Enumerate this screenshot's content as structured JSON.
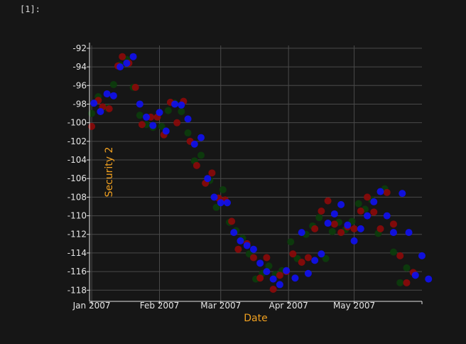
{
  "cell": {
    "prompt": "[1]:"
  },
  "chart_data": {
    "type": "scatter",
    "xlabel": "Date",
    "ylabel": "Security 2",
    "xlim": [
      "2006-12-31",
      "2007-06-01"
    ],
    "ylim": [
      -119.2,
      -91.7
    ],
    "xticks": [
      {
        "label": "Jan 2007",
        "date": "2007-01-01"
      },
      {
        "label": "Feb 2007",
        "date": "2007-02-01"
      },
      {
        "label": "Mar 2007",
        "date": "2007-03-01"
      },
      {
        "label": "Apr 2007",
        "date": "2007-04-01"
      },
      {
        "label": "May 2007",
        "date": "2007-05-01"
      }
    ],
    "yticks": [
      -92,
      -94,
      -96,
      -98,
      -100,
      -102,
      -104,
      -106,
      -108,
      -110,
      -112,
      -114,
      -116,
      -118
    ],
    "grid": true,
    "series_colors": [
      "#0c3d0c",
      "#8a0a0a",
      "#1010ee"
    ],
    "series": [
      {
        "values": [
          [
            "2007-01-01",
            -99.0
          ],
          [
            "2007-01-04",
            -97.2
          ],
          [
            "2007-01-08",
            -98.4
          ],
          [
            "2007-01-11",
            -95.9
          ],
          [
            "2007-01-14",
            -93.8
          ],
          [
            "2007-01-17",
            -93.2
          ],
          [
            "2007-01-20",
            -96.2
          ],
          [
            "2007-01-23",
            -99.2
          ],
          [
            "2007-01-26",
            -100.2
          ],
          [
            "2007-01-29",
            -100.5
          ],
          [
            "2007-02-02",
            -100.4
          ],
          [
            "2007-02-05",
            -98.7
          ],
          [
            "2007-02-08",
            -97.9
          ],
          [
            "2007-02-11",
            -98.8
          ],
          [
            "2007-02-14",
            -101.1
          ],
          [
            "2007-02-17",
            -104.1
          ],
          [
            "2007-02-20",
            -103.5
          ],
          [
            "2007-02-24",
            -106.2
          ],
          [
            "2007-02-27",
            -109.1
          ],
          [
            "2007-03-02",
            -107.2
          ],
          [
            "2007-03-05",
            -110.7
          ],
          [
            "2007-03-08",
            -111.6
          ],
          [
            "2007-03-11",
            -112.4
          ],
          [
            "2007-03-14",
            -114.1
          ],
          [
            "2007-03-17",
            -116.8
          ],
          [
            "2007-03-20",
            -116.2
          ],
          [
            "2007-03-23",
            -115.4
          ],
          [
            "2007-03-26",
            -116.3
          ],
          [
            "2007-03-29",
            -115.9
          ],
          [
            "2007-04-02",
            -112.8
          ],
          [
            "2007-04-05",
            -114.6
          ],
          [
            "2007-04-09",
            -112.0
          ],
          [
            "2007-04-12",
            -111.1
          ],
          [
            "2007-04-15",
            -110.2
          ],
          [
            "2007-04-18",
            -114.6
          ],
          [
            "2007-04-21",
            -111.7
          ],
          [
            "2007-04-24",
            -110.7
          ],
          [
            "2007-04-27",
            -111.5
          ],
          [
            "2007-04-30",
            -110.6
          ],
          [
            "2007-05-03",
            -108.7
          ],
          [
            "2007-05-06",
            -109.3
          ],
          [
            "2007-05-09",
            -108.3
          ],
          [
            "2007-05-12",
            -111.9
          ],
          [
            "2007-05-15",
            -107.1
          ],
          [
            "2007-05-19",
            -113.9
          ],
          [
            "2007-05-22",
            -117.2
          ],
          [
            "2007-05-25",
            -115.6
          ]
        ]
      },
      {
        "values": [
          [
            "2007-01-01",
            -100.4
          ],
          [
            "2007-01-04",
            -97.6
          ],
          [
            "2007-01-06",
            -98.3
          ],
          [
            "2007-01-09",
            -98.5
          ],
          [
            "2007-01-13",
            -93.9
          ],
          [
            "2007-01-15",
            -92.9
          ],
          [
            "2007-01-18",
            -93.6
          ],
          [
            "2007-01-21",
            -96.2
          ],
          [
            "2007-01-24",
            -100.2
          ],
          [
            "2007-01-28",
            -99.4
          ],
          [
            "2007-01-31",
            -99.4
          ],
          [
            "2007-02-03",
            -101.3
          ],
          [
            "2007-02-06",
            -97.8
          ],
          [
            "2007-02-09",
            -100.0
          ],
          [
            "2007-02-12",
            -97.7
          ],
          [
            "2007-02-15",
            -102.0
          ],
          [
            "2007-02-18",
            -104.6
          ],
          [
            "2007-02-22",
            -106.5
          ],
          [
            "2007-02-25",
            -105.4
          ],
          [
            "2007-02-28",
            -108.1
          ],
          [
            "2007-03-03",
            -108.3
          ],
          [
            "2007-03-06",
            -110.6
          ],
          [
            "2007-03-09",
            -113.6
          ],
          [
            "2007-03-13",
            -113.0
          ],
          [
            "2007-03-16",
            -114.5
          ],
          [
            "2007-03-19",
            -116.7
          ],
          [
            "2007-03-22",
            -114.5
          ],
          [
            "2007-03-25",
            -117.9
          ],
          [
            "2007-03-28",
            -116.4
          ],
          [
            "2007-03-31",
            -116.0
          ],
          [
            "2007-04-03",
            -114.1
          ],
          [
            "2007-04-07",
            -115.0
          ],
          [
            "2007-04-10",
            -114.5
          ],
          [
            "2007-04-13",
            -111.4
          ],
          [
            "2007-04-16",
            -109.5
          ],
          [
            "2007-04-19",
            -108.4
          ],
          [
            "2007-04-22",
            -110.9
          ],
          [
            "2007-04-25",
            -111.8
          ],
          [
            "2007-04-28",
            -111.2
          ],
          [
            "2007-05-01",
            -111.4
          ],
          [
            "2007-05-04",
            -109.5
          ],
          [
            "2007-05-07",
            -108.0
          ],
          [
            "2007-05-10",
            -109.6
          ],
          [
            "2007-05-13",
            -111.4
          ],
          [
            "2007-05-16",
            -107.5
          ],
          [
            "2007-05-19",
            -110.9
          ],
          [
            "2007-05-22",
            -114.3
          ],
          [
            "2007-05-25",
            -117.2
          ],
          [
            "2007-05-28",
            -116.1
          ]
        ]
      },
      {
        "values": [
          [
            "2007-01-02",
            -97.9
          ],
          [
            "2007-01-05",
            -98.8
          ],
          [
            "2007-01-08",
            -96.9
          ],
          [
            "2007-01-11",
            -97.1
          ],
          [
            "2007-01-14",
            -94.0
          ],
          [
            "2007-01-17",
            -93.6
          ],
          [
            "2007-01-20",
            -92.9
          ],
          [
            "2007-01-23",
            -98.0
          ],
          [
            "2007-01-26",
            -99.4
          ],
          [
            "2007-01-29",
            -100.3
          ],
          [
            "2007-02-01",
            -98.9
          ],
          [
            "2007-02-04",
            -100.9
          ],
          [
            "2007-02-08",
            -98.0
          ],
          [
            "2007-02-11",
            -98.1
          ],
          [
            "2007-02-14",
            -99.6
          ],
          [
            "2007-02-17",
            -102.3
          ],
          [
            "2007-02-20",
            -101.6
          ],
          [
            "2007-02-23",
            -106.0
          ],
          [
            "2007-02-26",
            -108.0
          ],
          [
            "2007-03-01",
            -108.6
          ],
          [
            "2007-03-04",
            -108.6
          ],
          [
            "2007-03-07",
            -111.8
          ],
          [
            "2007-03-10",
            -112.7
          ],
          [
            "2007-03-13",
            -113.2
          ],
          [
            "2007-03-16",
            -113.6
          ],
          [
            "2007-03-19",
            -115.1
          ],
          [
            "2007-03-22",
            -116.0
          ],
          [
            "2007-03-25",
            -116.8
          ],
          [
            "2007-03-28",
            -117.4
          ],
          [
            "2007-03-31",
            -115.9
          ],
          [
            "2007-04-04",
            -116.7
          ],
          [
            "2007-04-07",
            -111.8
          ],
          [
            "2007-04-10",
            -116.2
          ],
          [
            "2007-04-13",
            -114.8
          ],
          [
            "2007-04-16",
            -114.1
          ],
          [
            "2007-04-19",
            -110.8
          ],
          [
            "2007-04-22",
            -109.8
          ],
          [
            "2007-04-25",
            -108.8
          ],
          [
            "2007-04-28",
            -111.0
          ],
          [
            "2007-05-01",
            -112.7
          ],
          [
            "2007-05-04",
            -111.4
          ],
          [
            "2007-05-07",
            -110.0
          ],
          [
            "2007-05-10",
            -108.5
          ],
          [
            "2007-05-13",
            -107.4
          ],
          [
            "2007-05-16",
            -110.0
          ],
          [
            "2007-05-19",
            -111.8
          ],
          [
            "2007-05-23",
            -107.6
          ],
          [
            "2007-05-26",
            -111.8
          ],
          [
            "2007-05-29",
            -116.4
          ],
          [
            "2007-06-01",
            -114.3
          ],
          [
            "2007-06-04",
            -116.8
          ]
        ]
      }
    ]
  }
}
